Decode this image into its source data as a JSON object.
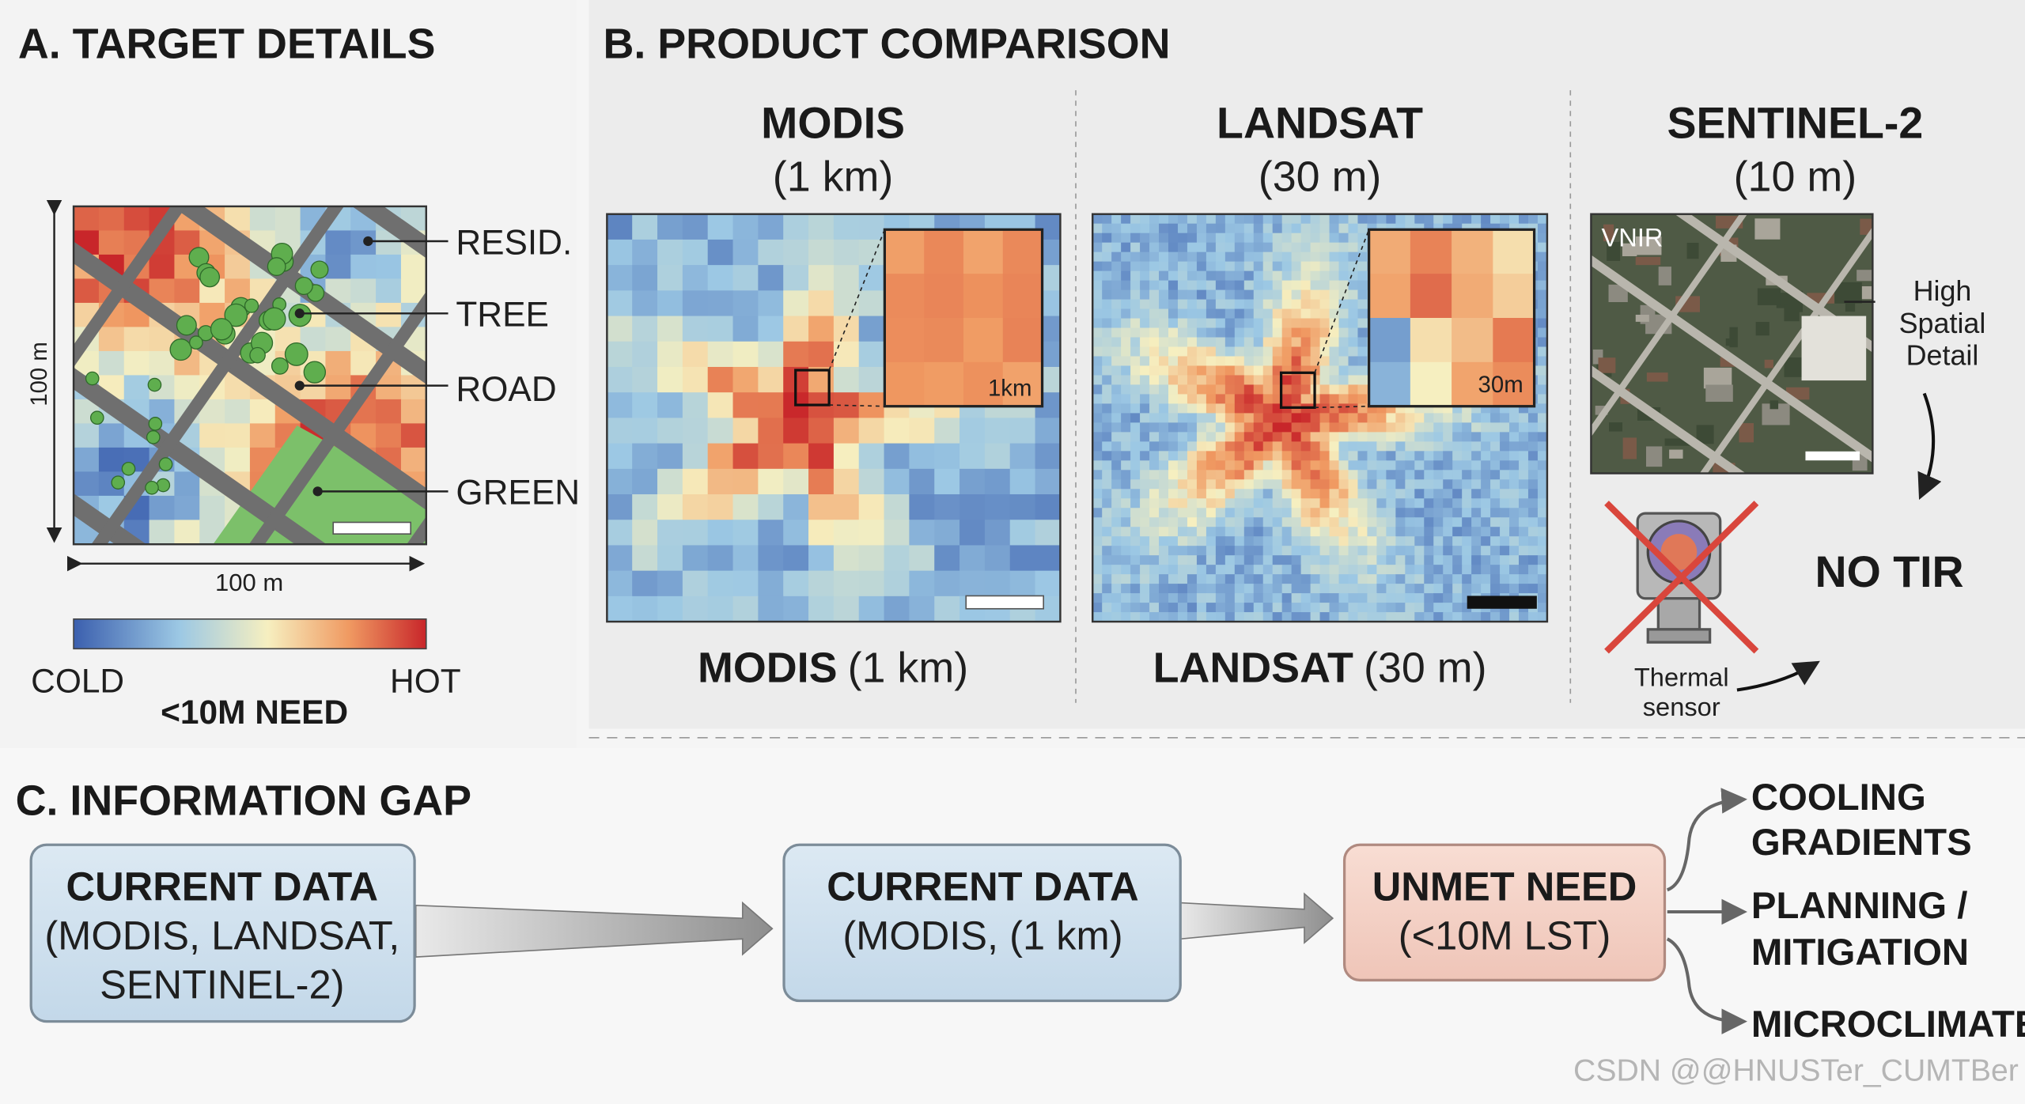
{
  "panel_a": {
    "title": "A. TARGET DETAILS",
    "labels": [
      "RESID.",
      "TREE",
      "ROAD",
      "GREEN"
    ],
    "y_axis_label": "100 m",
    "x_axis_label": "100 m",
    "colorbar": {
      "low": "COLD",
      "high": "HOT"
    },
    "need": "<10M NEED"
  },
  "panel_b": {
    "title": "B. PRODUCT COMPARISON",
    "modis": {
      "name": "MODIS",
      "resolution": "(1 km)",
      "inset": "1km",
      "caption_name": "MODIS",
      "caption_resolution": "(1 km)"
    },
    "landsat": {
      "name": "LANDSAT",
      "resolution": "(30 m)",
      "inset": "30m",
      "caption_name": "LANDSAT",
      "caption_resolution": "(30 m)"
    },
    "sentinel": {
      "name": "SENTINEL-2",
      "resolution": "(10 m)",
      "band": "VNIR",
      "detail": [
        "High",
        "Spatial",
        "Detail"
      ],
      "no_tir": "NO TIR",
      "sensor": [
        "Thermal",
        "sensor"
      ]
    }
  },
  "panel_c": {
    "title": "C. INFORMATION GAP",
    "boxes": [
      [
        "CURRENT DATA",
        "(MODIS, LANDSAT,",
        "SENTINEL-2)"
      ],
      [
        "CURRENT DATA",
        "(MODIS, (1 km)"
      ],
      [
        "UNMET NEED",
        "(<10M LST)"
      ]
    ],
    "outcomes": [
      [
        "COOLING",
        "GRADIENTS"
      ],
      [
        "PLANNING /",
        "MITIGATION"
      ],
      [
        "MICROCLIMATE"
      ]
    ]
  },
  "watermark": "CSDN @@HNUSTer_CUMTBer"
}
